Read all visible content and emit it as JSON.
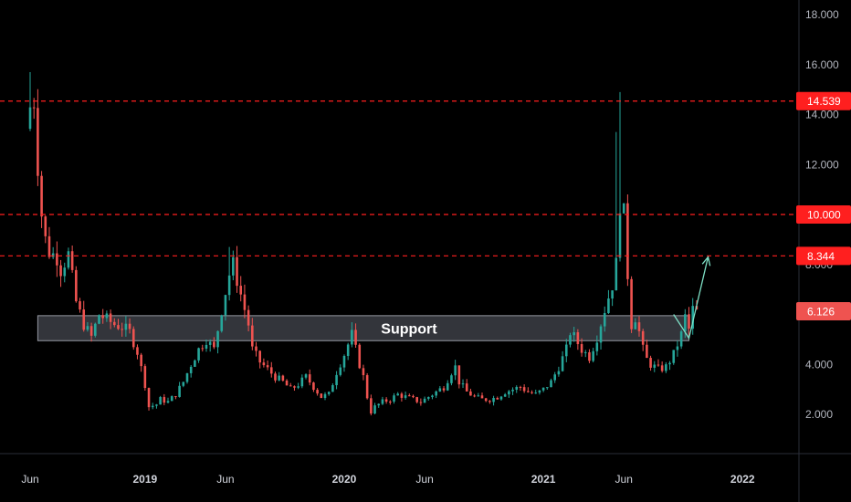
{
  "chart_data": {
    "type": "candlestick",
    "theme": "dark",
    "colors": {
      "background": "#000000",
      "up": "#26a69a",
      "down": "#ef5350",
      "level_line": "#ff1f1f",
      "badge_red": "#ff1f1f",
      "badge_current": "#ef5350",
      "support_fill": "#5d606b",
      "arrow": "#7ee0c6",
      "axis_text": "#b2b5be"
    },
    "y_axis": {
      "position": "right",
      "ylim": [
        0,
        18.5
      ],
      "ticks": [
        "18.000",
        "16.000",
        "14.000",
        "12.000",
        "10.000",
        "8.000",
        "6.000",
        "4.000",
        "2.000"
      ],
      "tick_values": [
        18,
        16,
        14,
        12,
        10,
        8,
        6,
        4,
        2
      ]
    },
    "x_axis": {
      "labels": [
        {
          "text": "Jun",
          "bold": false,
          "week": 0
        },
        {
          "text": "2019",
          "bold": true,
          "week": 30
        },
        {
          "text": "Jun",
          "bold": false,
          "week": 51
        },
        {
          "text": "2020",
          "bold": true,
          "week": 82
        },
        {
          "text": "Jun",
          "bold": false,
          "week": 103
        },
        {
          "text": "2021",
          "bold": true,
          "week": 134
        },
        {
          "text": "Jun",
          "bold": false,
          "week": 155
        },
        {
          "text": "2022",
          "bold": true,
          "week": 186
        }
      ],
      "total_weeks": 196
    },
    "levels": [
      {
        "value": 14.539,
        "label": "14.539",
        "style": "dashed"
      },
      {
        "value": 10.0,
        "label": "10.000",
        "style": "dashed"
      },
      {
        "value": 8.344,
        "label": "8.344",
        "style": "dashed"
      }
    ],
    "current_price": {
      "value": 6.126,
      "label": "6.126"
    },
    "support_zone": {
      "low": 4.95,
      "high": 5.95,
      "label": "Support",
      "week_start": 2,
      "week_end": 172
    },
    "projection": [
      [
        168,
        6.0
      ],
      [
        172,
        5.05
      ],
      [
        177,
        8.3
      ]
    ],
    "anchors": [
      [
        0,
        14.3
      ],
      [
        1,
        14.6
      ],
      [
        2,
        12.0
      ],
      [
        3,
        10.0
      ],
      [
        4,
        9.0
      ],
      [
        5,
        8.5
      ],
      [
        7,
        8.3
      ],
      [
        8,
        7.8
      ],
      [
        10,
        8.4
      ],
      [
        12,
        6.5
      ],
      [
        14,
        5.6
      ],
      [
        16,
        5.1
      ],
      [
        18,
        6.0
      ],
      [
        20,
        5.8
      ],
      [
        22,
        5.6
      ],
      [
        24,
        5.5
      ],
      [
        26,
        5.3
      ],
      [
        28,
        4.5
      ],
      [
        30,
        3.2
      ],
      [
        31,
        2.3
      ],
      [
        33,
        2.4
      ],
      [
        34,
        2.6
      ],
      [
        36,
        2.5
      ],
      [
        38,
        2.8
      ],
      [
        40,
        3.3
      ],
      [
        42,
        4.0
      ],
      [
        44,
        4.6
      ],
      [
        46,
        5.0
      ],
      [
        48,
        4.6
      ],
      [
        50,
        6.2
      ],
      [
        52,
        7.6
      ],
      [
        53,
        8.0
      ],
      [
        55,
        6.8
      ],
      [
        57,
        5.6
      ],
      [
        58,
        4.6
      ],
      [
        60,
        4.1
      ],
      [
        62,
        3.8
      ],
      [
        64,
        3.5
      ],
      [
        66,
        3.3
      ],
      [
        68,
        3.0
      ],
      [
        70,
        3.2
      ],
      [
        72,
        3.5
      ],
      [
        74,
        3.1
      ],
      [
        76,
        2.7
      ],
      [
        78,
        2.8
      ],
      [
        80,
        3.7
      ],
      [
        82,
        4.4
      ],
      [
        84,
        5.2
      ],
      [
        86,
        4.0
      ],
      [
        87,
        3.5
      ],
      [
        88,
        2.7
      ],
      [
        89,
        2.1
      ],
      [
        90,
        2.3
      ],
      [
        92,
        2.5
      ],
      [
        94,
        2.6
      ],
      [
        96,
        2.8
      ],
      [
        98,
        2.7
      ],
      [
        100,
        2.6
      ],
      [
        102,
        2.5
      ],
      [
        104,
        2.7
      ],
      [
        106,
        2.9
      ],
      [
        108,
        3.1
      ],
      [
        110,
        3.7
      ],
      [
        111,
        3.9
      ],
      [
        112,
        3.3
      ],
      [
        114,
        2.9
      ],
      [
        116,
        2.7
      ],
      [
        118,
        2.6
      ],
      [
        120,
        2.6
      ],
      [
        122,
        2.7
      ],
      [
        124,
        2.9
      ],
      [
        126,
        3.0
      ],
      [
        128,
        3.1
      ],
      [
        130,
        2.9
      ],
      [
        132,
        2.8
      ],
      [
        134,
        3.0
      ],
      [
        136,
        3.3
      ],
      [
        138,
        3.9
      ],
      [
        140,
        4.6
      ],
      [
        141,
        5.3
      ],
      [
        142,
        5.1
      ],
      [
        144,
        4.6
      ],
      [
        146,
        4.3
      ],
      [
        148,
        5.1
      ],
      [
        150,
        6.2
      ],
      [
        152,
        7.2
      ],
      [
        153,
        8.0
      ],
      [
        154,
        10.5
      ],
      [
        155,
        10.0
      ],
      [
        156,
        7.6
      ],
      [
        157,
        5.6
      ],
      [
        158,
        5.9
      ],
      [
        159,
        5.3
      ],
      [
        160,
        4.6
      ],
      [
        161,
        4.2
      ],
      [
        162,
        4.0
      ],
      [
        164,
        3.8
      ],
      [
        166,
        3.9
      ],
      [
        168,
        4.4
      ],
      [
        170,
        5.2
      ],
      [
        171,
        5.9
      ],
      [
        172,
        5.4
      ],
      [
        173,
        6.2
      ],
      [
        174,
        6.1
      ]
    ],
    "spikes": [
      [
        0,
        15.7
      ],
      [
        52,
        8.7
      ],
      [
        153,
        13.3
      ],
      [
        154,
        14.9
      ],
      [
        155,
        10.4
      ],
      [
        172,
        6.3
      ]
    ]
  }
}
